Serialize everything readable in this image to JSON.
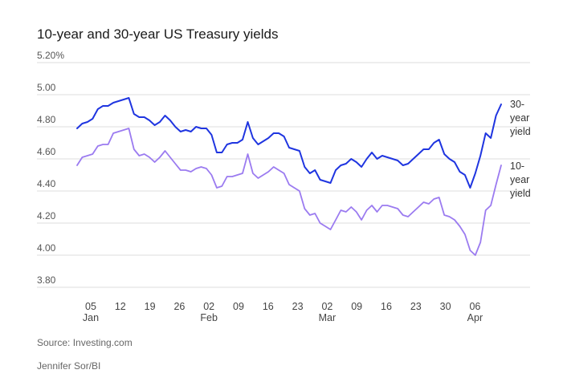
{
  "chart_data": {
    "type": "line",
    "title": "10-year and 30-year US Treasury yields",
    "ylim": [
      3.8,
      5.2
    ],
    "y_ticks": [
      "5.20%",
      "5.00",
      "4.80",
      "4.60",
      "4.40",
      "4.20",
      "4.00",
      "3.80"
    ],
    "x_ticks": [
      {
        "day": "05",
        "month": "Jan"
      },
      {
        "day": "12",
        "month": ""
      },
      {
        "day": "19",
        "month": ""
      },
      {
        "day": "26",
        "month": ""
      },
      {
        "day": "02",
        "month": "Feb"
      },
      {
        "day": "09",
        "month": ""
      },
      {
        "day": "16",
        "month": ""
      },
      {
        "day": "23",
        "month": ""
      },
      {
        "day": "02",
        "month": "Mar"
      },
      {
        "day": "09",
        "month": ""
      },
      {
        "day": "16",
        "month": ""
      },
      {
        "day": "23",
        "month": ""
      },
      {
        "day": "30",
        "month": ""
      },
      {
        "day": "06",
        "month": "Apr"
      }
    ],
    "series": [
      {
        "name": "30-year yield",
        "label_lines": [
          "30-",
          "year",
          "yield"
        ],
        "color": "#1f35e0",
        "values": [
          4.79,
          4.82,
          4.83,
          4.85,
          4.91,
          4.93,
          4.93,
          4.95,
          4.96,
          4.97,
          4.98,
          4.88,
          4.86,
          4.86,
          4.84,
          4.81,
          4.83,
          4.87,
          4.84,
          4.8,
          4.77,
          4.78,
          4.77,
          4.8,
          4.79,
          4.79,
          4.75,
          4.64,
          4.64,
          4.69,
          4.7,
          4.7,
          4.72,
          4.83,
          4.73,
          4.69,
          4.71,
          4.73,
          4.76,
          4.76,
          4.74,
          4.67,
          4.66,
          4.65,
          4.55,
          4.51,
          4.53,
          4.47,
          4.46,
          4.45,
          4.53,
          4.56,
          4.57,
          4.6,
          4.58,
          4.55,
          4.6,
          4.64,
          4.6,
          4.62,
          4.61,
          4.6,
          4.59,
          4.56,
          4.57,
          4.6,
          4.63,
          4.66,
          4.66,
          4.7,
          4.72,
          4.63,
          4.6,
          4.58,
          4.52,
          4.5,
          4.42,
          4.51,
          4.62,
          4.76,
          4.73,
          4.87,
          4.94
        ]
      },
      {
        "name": "10-year yield",
        "label_lines": [
          "10-",
          "year",
          "yield"
        ],
        "color": "#9b7bf0",
        "values": [
          4.56,
          4.61,
          4.62,
          4.63,
          4.68,
          4.69,
          4.69,
          4.76,
          4.77,
          4.78,
          4.79,
          4.66,
          4.62,
          4.63,
          4.61,
          4.58,
          4.61,
          4.65,
          4.61,
          4.57,
          4.53,
          4.53,
          4.52,
          4.54,
          4.55,
          4.54,
          4.5,
          4.42,
          4.43,
          4.49,
          4.49,
          4.5,
          4.51,
          4.63,
          4.51,
          4.48,
          4.5,
          4.52,
          4.55,
          4.53,
          4.51,
          4.44,
          4.42,
          4.4,
          4.29,
          4.25,
          4.26,
          4.2,
          4.18,
          4.16,
          4.22,
          4.28,
          4.27,
          4.3,
          4.27,
          4.22,
          4.28,
          4.31,
          4.27,
          4.31,
          4.31,
          4.3,
          4.29,
          4.25,
          4.24,
          4.27,
          4.3,
          4.33,
          4.32,
          4.35,
          4.36,
          4.25,
          4.24,
          4.22,
          4.18,
          4.13,
          4.03,
          4.0,
          4.08,
          4.28,
          4.31,
          4.44,
          4.56
        ]
      }
    ],
    "grid": true,
    "legend": "inline-right"
  },
  "footer": {
    "source": "Source: Investing.com",
    "credit": "Jennifer Sor/BI"
  }
}
